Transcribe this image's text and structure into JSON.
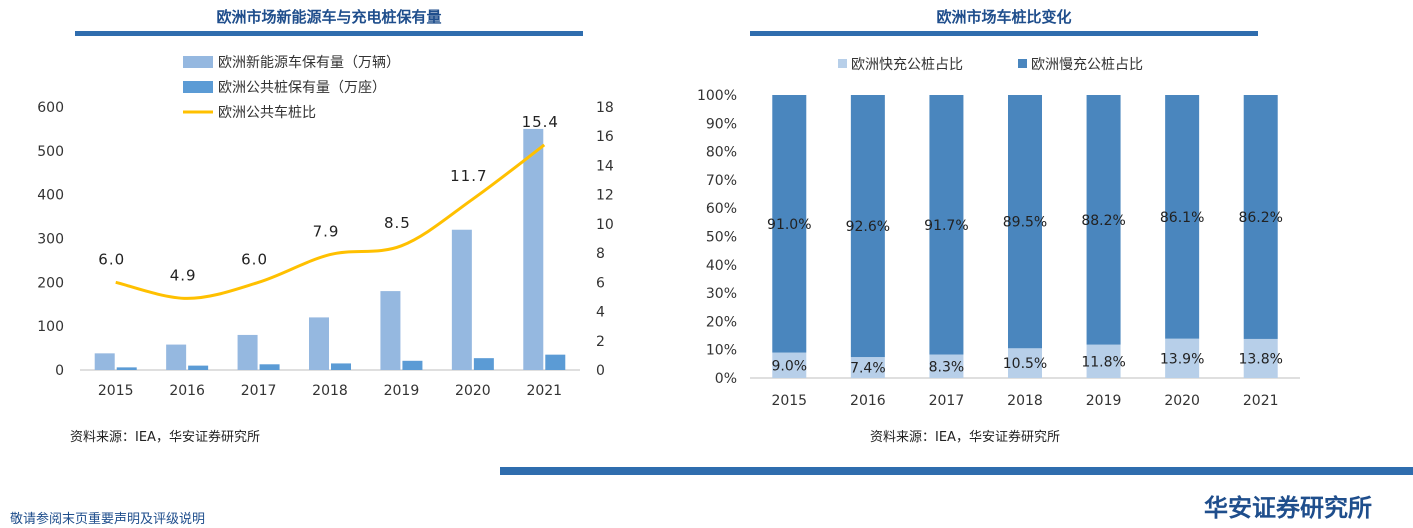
{
  "left": {
    "title": "欧洲市场新能源车与充电桩保有量",
    "source": "资料来源：IEA，华安证券研究所"
  },
  "right": {
    "title": "欧洲市场车桩比变化",
    "source": "资料来源：IEA，华安证券研究所"
  },
  "footer": {
    "disclaimer": "敬请参阅末页重要声明及评级说明",
    "brand": "华安证券研究所"
  },
  "colors": {
    "light_blue": "#95b8e0",
    "mid_blue": "#5b9bd5",
    "yellow": "#ffc000",
    "dark_blue": "#4a86be",
    "fast_blue": "#b7cfe9",
    "rule": "#2f6dae"
  },
  "chart_data": [
    {
      "type": "bar",
      "categories": [
        "2015",
        "2016",
        "2017",
        "2018",
        "2019",
        "2020",
        "2021"
      ],
      "series": [
        {
          "name": "欧洲新能源车保有量（万辆）",
          "type": "bar",
          "axis": "left",
          "values": [
            38,
            58,
            80,
            120,
            180,
            320,
            550
          ]
        },
        {
          "name": "欧洲公共桩保有量（万座）",
          "type": "bar",
          "axis": "left",
          "values": [
            6,
            10,
            13,
            15,
            21,
            27,
            35
          ]
        },
        {
          "name": "欧洲公共车桩比",
          "type": "line",
          "axis": "right",
          "values": [
            6.0,
            4.9,
            6.0,
            7.9,
            8.5,
            11.7,
            15.4
          ]
        }
      ],
      "data_labels": [
        "6.0",
        "4.9",
        "6.0",
        "7.9",
        "8.5",
        "11.7",
        "15.4"
      ],
      "ylim": [
        0,
        600
      ],
      "y_ticks": [
        "0",
        "100",
        "200",
        "300",
        "400",
        "500",
        "600"
      ],
      "y2lim": [
        0,
        18
      ],
      "y2_ticks": [
        "0",
        "2",
        "4",
        "6",
        "8",
        "10",
        "12",
        "14",
        "16",
        "18"
      ],
      "legend_position": "top-left"
    },
    {
      "type": "bar",
      "stacked": true,
      "categories": [
        "2015",
        "2016",
        "2017",
        "2018",
        "2019",
        "2020",
        "2021"
      ],
      "series": [
        {
          "name": "欧洲快充公桩占比",
          "values": [
            9.0,
            7.4,
            8.3,
            10.5,
            11.8,
            13.9,
            13.8
          ],
          "labels": [
            "9.0%",
            "7.4%",
            "8.3%",
            "10.5%",
            "11.8%",
            "13.9%",
            "13.8%"
          ]
        },
        {
          "name": "欧洲慢充公桩占比",
          "values": [
            91.0,
            92.6,
            91.7,
            89.5,
            88.2,
            86.1,
            86.2
          ],
          "labels": [
            "91.0%",
            "92.6%",
            "91.7%",
            "89.5%",
            "88.2%",
            "86.1%",
            "86.2%"
          ]
        }
      ],
      "ylim": [
        0,
        100
      ],
      "y_ticks": [
        "0%",
        "10%",
        "20%",
        "30%",
        "40%",
        "50%",
        "60%",
        "70%",
        "80%",
        "90%",
        "100%"
      ],
      "legend_position": "top-center"
    }
  ]
}
